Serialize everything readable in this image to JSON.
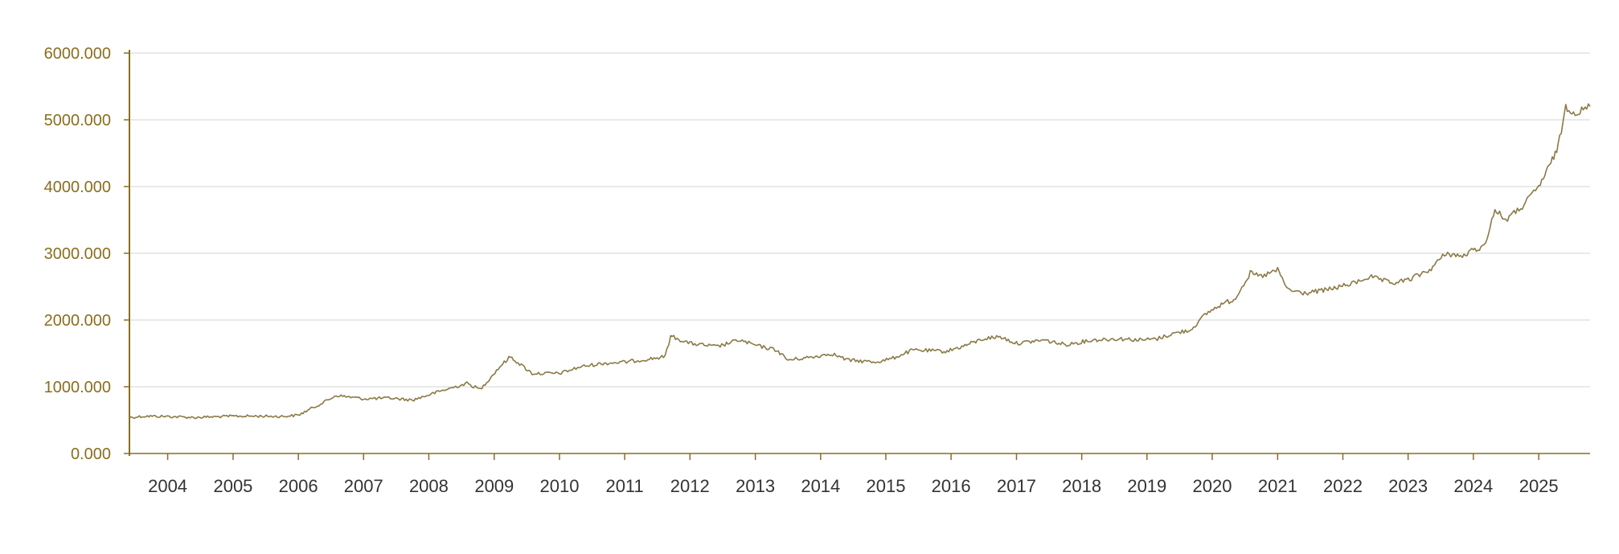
{
  "chart_data": {
    "type": "line",
    "title": "",
    "xlabel": "",
    "ylabel": "",
    "xlim": [
      "2003-06-01",
      "2025-10-15"
    ],
    "ylim": [
      0,
      6000
    ],
    "grid": true,
    "legend": "none",
    "x_ticks": [
      "2004",
      "2005",
      "2006",
      "2007",
      "2008",
      "2009",
      "2010",
      "2011",
      "2012",
      "2013",
      "2014",
      "2015",
      "2016",
      "2017",
      "2018",
      "2019",
      "2020",
      "2021",
      "2022",
      "2023",
      "2024",
      "2025"
    ],
    "y_ticks": [
      "0.000",
      "1000.000",
      "2000.000",
      "3000.000",
      "4000.000",
      "5000.000",
      "6000.000"
    ],
    "colors": {
      "line": "#8a7a45",
      "axis": "#8a6d1e",
      "y_tick_text": "#8a6d1e",
      "x_tick_text": "#333333",
      "grid": "#dcdcdc"
    },
    "series": [
      {
        "x": [
          "2003-06-01",
          "2003-09-01",
          "2004-01-01",
          "2004-06-01",
          "2005-01-01",
          "2005-06-01",
          "2005-10-01",
          "2006-01-01",
          "2006-06-01",
          "2006-08-01",
          "2007-01-01",
          "2007-06-01",
          "2007-10-01",
          "2008-03-01",
          "2008-08-01",
          "2008-10-15",
          "2009-02-01",
          "2009-04-01",
          "2009-08-01",
          "2010-01-01",
          "2010-05-01",
          "2010-09-01",
          "2011-01-01",
          "2011-05-01",
          "2011-08-15",
          "2011-09-15",
          "2012-01-01",
          "2012-06-01",
          "2012-10-01",
          "2013-01-01",
          "2013-05-01",
          "2013-07-01",
          "2013-12-01",
          "2014-03-01",
          "2014-06-01",
          "2014-11-01",
          "2015-02-01",
          "2015-06-01",
          "2015-12-01",
          "2016-03-01",
          "2016-07-01",
          "2016-10-01",
          "2017-01-01",
          "2017-06-01",
          "2017-10-01",
          "2018-03-01",
          "2018-08-01",
          "2018-12-01",
          "2019-03-01",
          "2019-06-01",
          "2019-09-01",
          "2019-12-01",
          "2020-03-01",
          "2020-05-01",
          "2020-08-01",
          "2020-10-01",
          "2021-01-01",
          "2021-03-01",
          "2021-06-01",
          "2021-10-01",
          "2022-03-01",
          "2022-06-01",
          "2022-10-01",
          "2023-01-01",
          "2023-05-01",
          "2023-08-01",
          "2023-11-01",
          "2024-01-01",
          "2024-03-01",
          "2024-05-01",
          "2024-07-01",
          "2024-10-01",
          "2025-01-01",
          "2025-03-01",
          "2025-04-20",
          "2025-06-01",
          "2025-08-01",
          "2025-10-15"
        ],
        "values": [
          540,
          560,
          555,
          540,
          560,
          560,
          555,
          575,
          780,
          870,
          820,
          830,
          800,
          930,
          1050,
          960,
          1300,
          1450,
          1200,
          1200,
          1300,
          1350,
          1370,
          1410,
          1450,
          1760,
          1650,
          1600,
          1700,
          1620,
          1550,
          1400,
          1450,
          1500,
          1400,
          1370,
          1420,
          1550,
          1530,
          1600,
          1720,
          1750,
          1650,
          1700,
          1630,
          1700,
          1720,
          1700,
          1720,
          1800,
          1850,
          2100,
          2250,
          2300,
          2700,
          2650,
          2750,
          2450,
          2400,
          2450,
          2550,
          2650,
          2550,
          2600,
          2750,
          3000,
          2950,
          3050,
          3100,
          3650,
          3500,
          3700,
          4000,
          4300,
          4600,
          5200,
          5100,
          5200
        ]
      }
    ]
  }
}
